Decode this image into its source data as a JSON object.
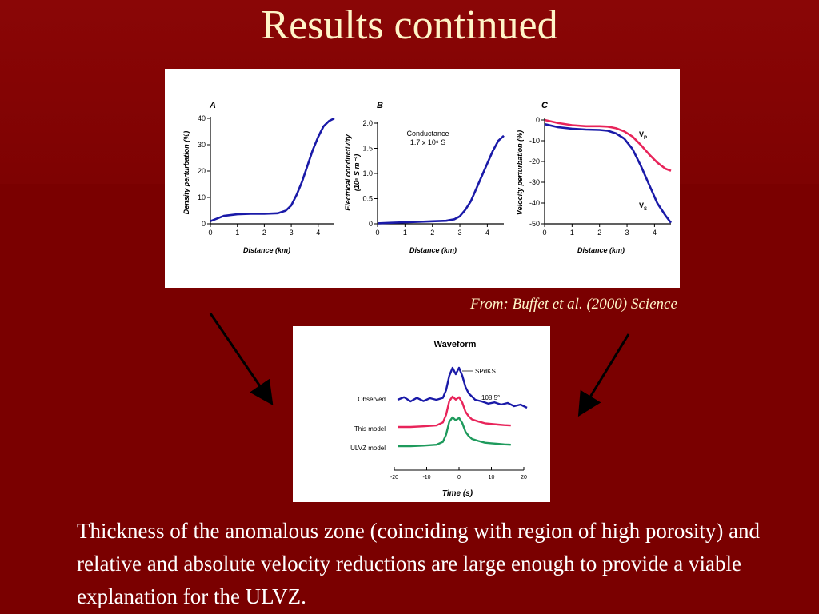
{
  "slide": {
    "title": "Results continued",
    "credit": "From: Buffet et al. (2000) Science",
    "body": "Thickness of the anomalous zone (coinciding with region of high porosity) and relative and absolute velocity reductions are large enough to provide a viable explanation for the ULVZ."
  },
  "colors": {
    "background": "#7a0000",
    "title": "#fff5c8",
    "blue": "#1a1aa8",
    "red": "#e8245a",
    "green": "#1e9a5c"
  },
  "chart_data": [
    {
      "type": "line",
      "panel": "A",
      "xlabel": "Distance (km)",
      "ylabel": "Density perturbation (%)",
      "xlim": [
        0,
        4.6
      ],
      "ylim": [
        0,
        40
      ],
      "xticks": [
        "0",
        "1",
        "2",
        "3",
        "4"
      ],
      "yticks": [
        "0",
        "10",
        "20",
        "30",
        "40"
      ],
      "series": [
        {
          "color": "#1a1aa8",
          "x": [
            0,
            0.5,
            1,
            1.5,
            2,
            2.5,
            2.8,
            3.0,
            3.2,
            3.4,
            3.6,
            3.8,
            4.0,
            4.2,
            4.4,
            4.6
          ],
          "y": [
            1,
            3,
            3.6,
            3.8,
            3.8,
            4,
            5,
            7,
            11,
            16,
            22,
            28,
            33,
            37,
            39,
            40
          ]
        }
      ]
    },
    {
      "type": "line",
      "panel": "B",
      "xlabel": "Distance (km)",
      "ylabel": "Electrical conductivity",
      "ylabel2": "(10⁵ S m⁻¹)",
      "annotation": "Conductance",
      "annotation2": "1.7 x 10⁸ S",
      "xlim": [
        0,
        4.6
      ],
      "ylim": [
        0,
        2.0
      ],
      "xticks": [
        "0",
        "1",
        "2",
        "3",
        "4"
      ],
      "yticks": [
        "0",
        "0.5",
        "1.0",
        "1.5",
        "2.0"
      ],
      "series": [
        {
          "color": "#1a1aa8",
          "x": [
            0,
            0.5,
            1,
            1.5,
            2,
            2.5,
            2.8,
            3.0,
            3.2,
            3.4,
            3.6,
            3.8,
            4.0,
            4.2,
            4.4,
            4.6
          ],
          "y": [
            0.01,
            0.02,
            0.03,
            0.04,
            0.05,
            0.06,
            0.09,
            0.15,
            0.28,
            0.45,
            0.7,
            0.95,
            1.2,
            1.45,
            1.65,
            1.75
          ]
        }
      ]
    },
    {
      "type": "line",
      "panel": "C",
      "xlabel": "Distance (km)",
      "ylabel": "Velocity perturbation (%)",
      "xlim": [
        0,
        4.6
      ],
      "ylim": [
        -50,
        0
      ],
      "xticks": [
        "0",
        "1",
        "2",
        "3",
        "4"
      ],
      "yticks": [
        "0",
        "-10",
        "-20",
        "-30",
        "-40",
        "-50"
      ],
      "series": [
        {
          "name": "VP",
          "color": "#e8245a",
          "x": [
            0,
            0.5,
            1,
            1.5,
            2,
            2.3,
            2.6,
            2.9,
            3.2,
            3.5,
            3.8,
            4.1,
            4.4,
            4.6
          ],
          "y": [
            0,
            -1.5,
            -2.5,
            -3,
            -3,
            -3.2,
            -4,
            -5.5,
            -8,
            -12,
            -16.5,
            -20.5,
            -23.5,
            -24.5
          ]
        },
        {
          "name": "VS",
          "color": "#1a1aa8",
          "x": [
            0,
            0.5,
            1,
            1.5,
            2,
            2.3,
            2.6,
            2.9,
            3.2,
            3.5,
            3.8,
            4.1,
            4.4,
            4.6
          ],
          "y": [
            -2,
            -3.5,
            -4.2,
            -4.6,
            -4.8,
            -5.2,
            -6.5,
            -9,
            -14,
            -22,
            -31,
            -40,
            -46,
            -49.5
          ]
        }
      ]
    },
    {
      "type": "line",
      "title": "Waveform",
      "xlabel": "Time (s)",
      "xlim": [
        -20,
        20
      ],
      "xticks": [
        "-20",
        "-10",
        "0",
        "10",
        "20"
      ],
      "annotation_phase": "SPdKS",
      "annotation_distance": "108.5°",
      "series": [
        {
          "name": "Observed",
          "color": "#1a1aa8",
          "x": [
            -19,
            -17,
            -15,
            -13,
            -11,
            -9,
            -7,
            -5,
            -4,
            -3,
            -2,
            -1,
            0,
            1,
            2,
            3,
            4,
            5,
            7,
            9,
            11,
            13,
            15,
            17,
            19,
            21
          ],
          "y": [
            0,
            0.08,
            -0.05,
            0.06,
            -0.04,
            0.05,
            0.0,
            0.06,
            0.3,
            0.75,
            1.0,
            0.8,
            1.0,
            0.75,
            0.4,
            0.2,
            0.1,
            0.0,
            -0.05,
            -0.12,
            -0.08,
            -0.15,
            -0.1,
            -0.2,
            -0.15,
            -0.25
          ]
        },
        {
          "name": "This model",
          "color": "#e8245a",
          "x": [
            -19,
            -15,
            -11,
            -7,
            -5,
            -4,
            -3,
            -2,
            -1,
            0,
            1,
            2,
            3,
            4,
            6,
            8,
            10,
            12,
            14,
            16
          ],
          "y": [
            0,
            0.0,
            0.02,
            0.05,
            0.15,
            0.4,
            0.85,
            1.0,
            0.9,
            0.98,
            0.8,
            0.5,
            0.35,
            0.25,
            0.18,
            0.12,
            0.1,
            0.08,
            0.06,
            0.05
          ]
        },
        {
          "name": "ULVZ model",
          "color": "#1e9a5c",
          "x": [
            -19,
            -15,
            -11,
            -7,
            -5,
            -4,
            -3,
            -2,
            -1,
            0,
            1,
            2,
            3,
            4,
            6,
            8,
            10,
            12,
            14,
            16
          ],
          "y": [
            0,
            0.0,
            0.02,
            0.05,
            0.15,
            0.4,
            0.85,
            1.0,
            0.9,
            0.98,
            0.8,
            0.5,
            0.35,
            0.25,
            0.18,
            0.12,
            0.1,
            0.08,
            0.06,
            0.05
          ]
        }
      ]
    }
  ]
}
